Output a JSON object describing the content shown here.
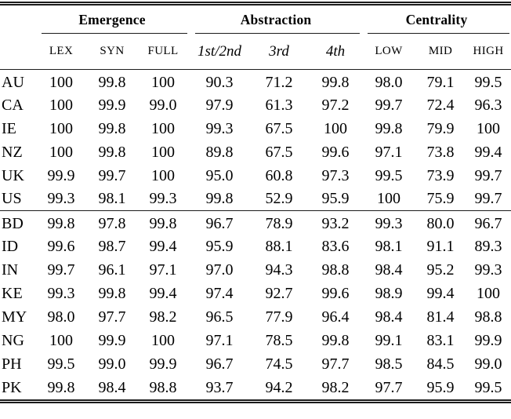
{
  "colors": {
    "text": "#000000",
    "rule": "#1c1c1c",
    "background": "#ffffff"
  },
  "table": {
    "corner_label": "",
    "groups": [
      {
        "label": "Emergence",
        "style": "caps",
        "columns": [
          "LEX",
          "SYN",
          "FULL"
        ]
      },
      {
        "label": "Abstraction",
        "style": "italic",
        "columns": [
          "1st/2nd",
          "3rd",
          "4th"
        ]
      },
      {
        "label": "Centrality",
        "style": "caps",
        "columns": [
          "LOW",
          "MID",
          "HIGH"
        ]
      }
    ],
    "sections": [
      {
        "rows": [
          {
            "label": "AU",
            "values": [
              "100",
              "99.8",
              "100",
              "90.3",
              "71.2",
              "99.8",
              "98.0",
              "79.1",
              "99.5"
            ]
          },
          {
            "label": "CA",
            "values": [
              "100",
              "99.9",
              "99.0",
              "97.9",
              "61.3",
              "97.2",
              "99.7",
              "72.4",
              "96.3"
            ]
          },
          {
            "label": "IE",
            "values": [
              "100",
              "99.8",
              "100",
              "99.3",
              "67.5",
              "100",
              "99.8",
              "79.9",
              "100"
            ]
          },
          {
            "label": "NZ",
            "values": [
              "100",
              "99.8",
              "100",
              "89.8",
              "67.5",
              "99.6",
              "97.1",
              "73.8",
              "99.4"
            ]
          },
          {
            "label": "UK",
            "values": [
              "99.9",
              "99.7",
              "100",
              "95.0",
              "60.8",
              "97.3",
              "99.5",
              "73.9",
              "99.7"
            ]
          },
          {
            "label": "US",
            "values": [
              "99.3",
              "98.1",
              "99.3",
              "99.8",
              "52.9",
              "95.9",
              "100",
              "75.9",
              "99.7"
            ]
          }
        ]
      },
      {
        "rows": [
          {
            "label": "BD",
            "values": [
              "99.8",
              "97.8",
              "99.8",
              "96.7",
              "78.9",
              "93.2",
              "99.3",
              "80.0",
              "96.7"
            ]
          },
          {
            "label": "ID",
            "values": [
              "99.6",
              "98.7",
              "99.4",
              "95.9",
              "88.1",
              "83.6",
              "98.1",
              "91.1",
              "89.3"
            ]
          },
          {
            "label": "IN",
            "values": [
              "99.7",
              "96.1",
              "97.1",
              "97.0",
              "94.3",
              "98.8",
              "98.4",
              "95.2",
              "99.3"
            ]
          },
          {
            "label": "KE",
            "values": [
              "99.3",
              "99.8",
              "99.4",
              "97.4",
              "92.7",
              "99.6",
              "98.9",
              "99.4",
              "100"
            ]
          },
          {
            "label": "MY",
            "values": [
              "98.0",
              "97.7",
              "98.2",
              "96.5",
              "77.9",
              "96.4",
              "98.4",
              "81.4",
              "98.8"
            ]
          },
          {
            "label": "NG",
            "values": [
              "100",
              "99.9",
              "100",
              "97.1",
              "78.5",
              "99.8",
              "99.1",
              "83.1",
              "99.9"
            ]
          },
          {
            "label": "PH",
            "values": [
              "99.5",
              "99.0",
              "99.9",
              "96.7",
              "74.5",
              "97.7",
              "98.5",
              "84.5",
              "99.0"
            ]
          },
          {
            "label": "PK",
            "values": [
              "99.8",
              "98.4",
              "98.8",
              "93.7",
              "94.2",
              "98.2",
              "97.7",
              "95.9",
              "99.5"
            ]
          }
        ]
      }
    ]
  }
}
